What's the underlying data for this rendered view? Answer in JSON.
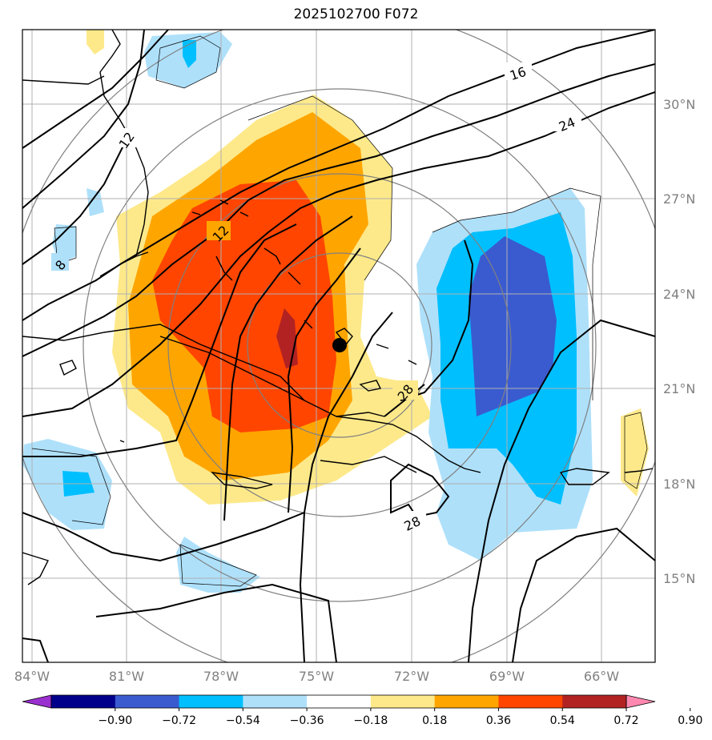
{
  "title": "2025102700 F072",
  "map": {
    "lon_ticks": [
      "84°W",
      "81°W",
      "78°W",
      "75°W",
      "72°W",
      "69°W",
      "66°W"
    ],
    "lat_ticks": [
      "30°N",
      "27°N",
      "24°N",
      "21°N",
      "18°N",
      "15°N"
    ],
    "contour_labels": [
      "16",
      "24",
      "12",
      "12",
      "8",
      "28",
      "28"
    ],
    "storm_marker": "black dot",
    "grid": true
  },
  "colorbar": {
    "ticks": [
      "−0.90",
      "−0.72",
      "−0.54",
      "−0.36",
      "−0.18",
      "0.18",
      "0.36",
      "0.54",
      "0.72",
      "0.90"
    ],
    "colors": [
      "#9b30d0",
      "#00008b",
      "#3a5bd0",
      "#00bfff",
      "#aee0fa",
      "#ffffff",
      "#fde98a",
      "#ffa500",
      "#ff4500",
      "#b22222",
      "#ff88b0"
    ]
  }
}
